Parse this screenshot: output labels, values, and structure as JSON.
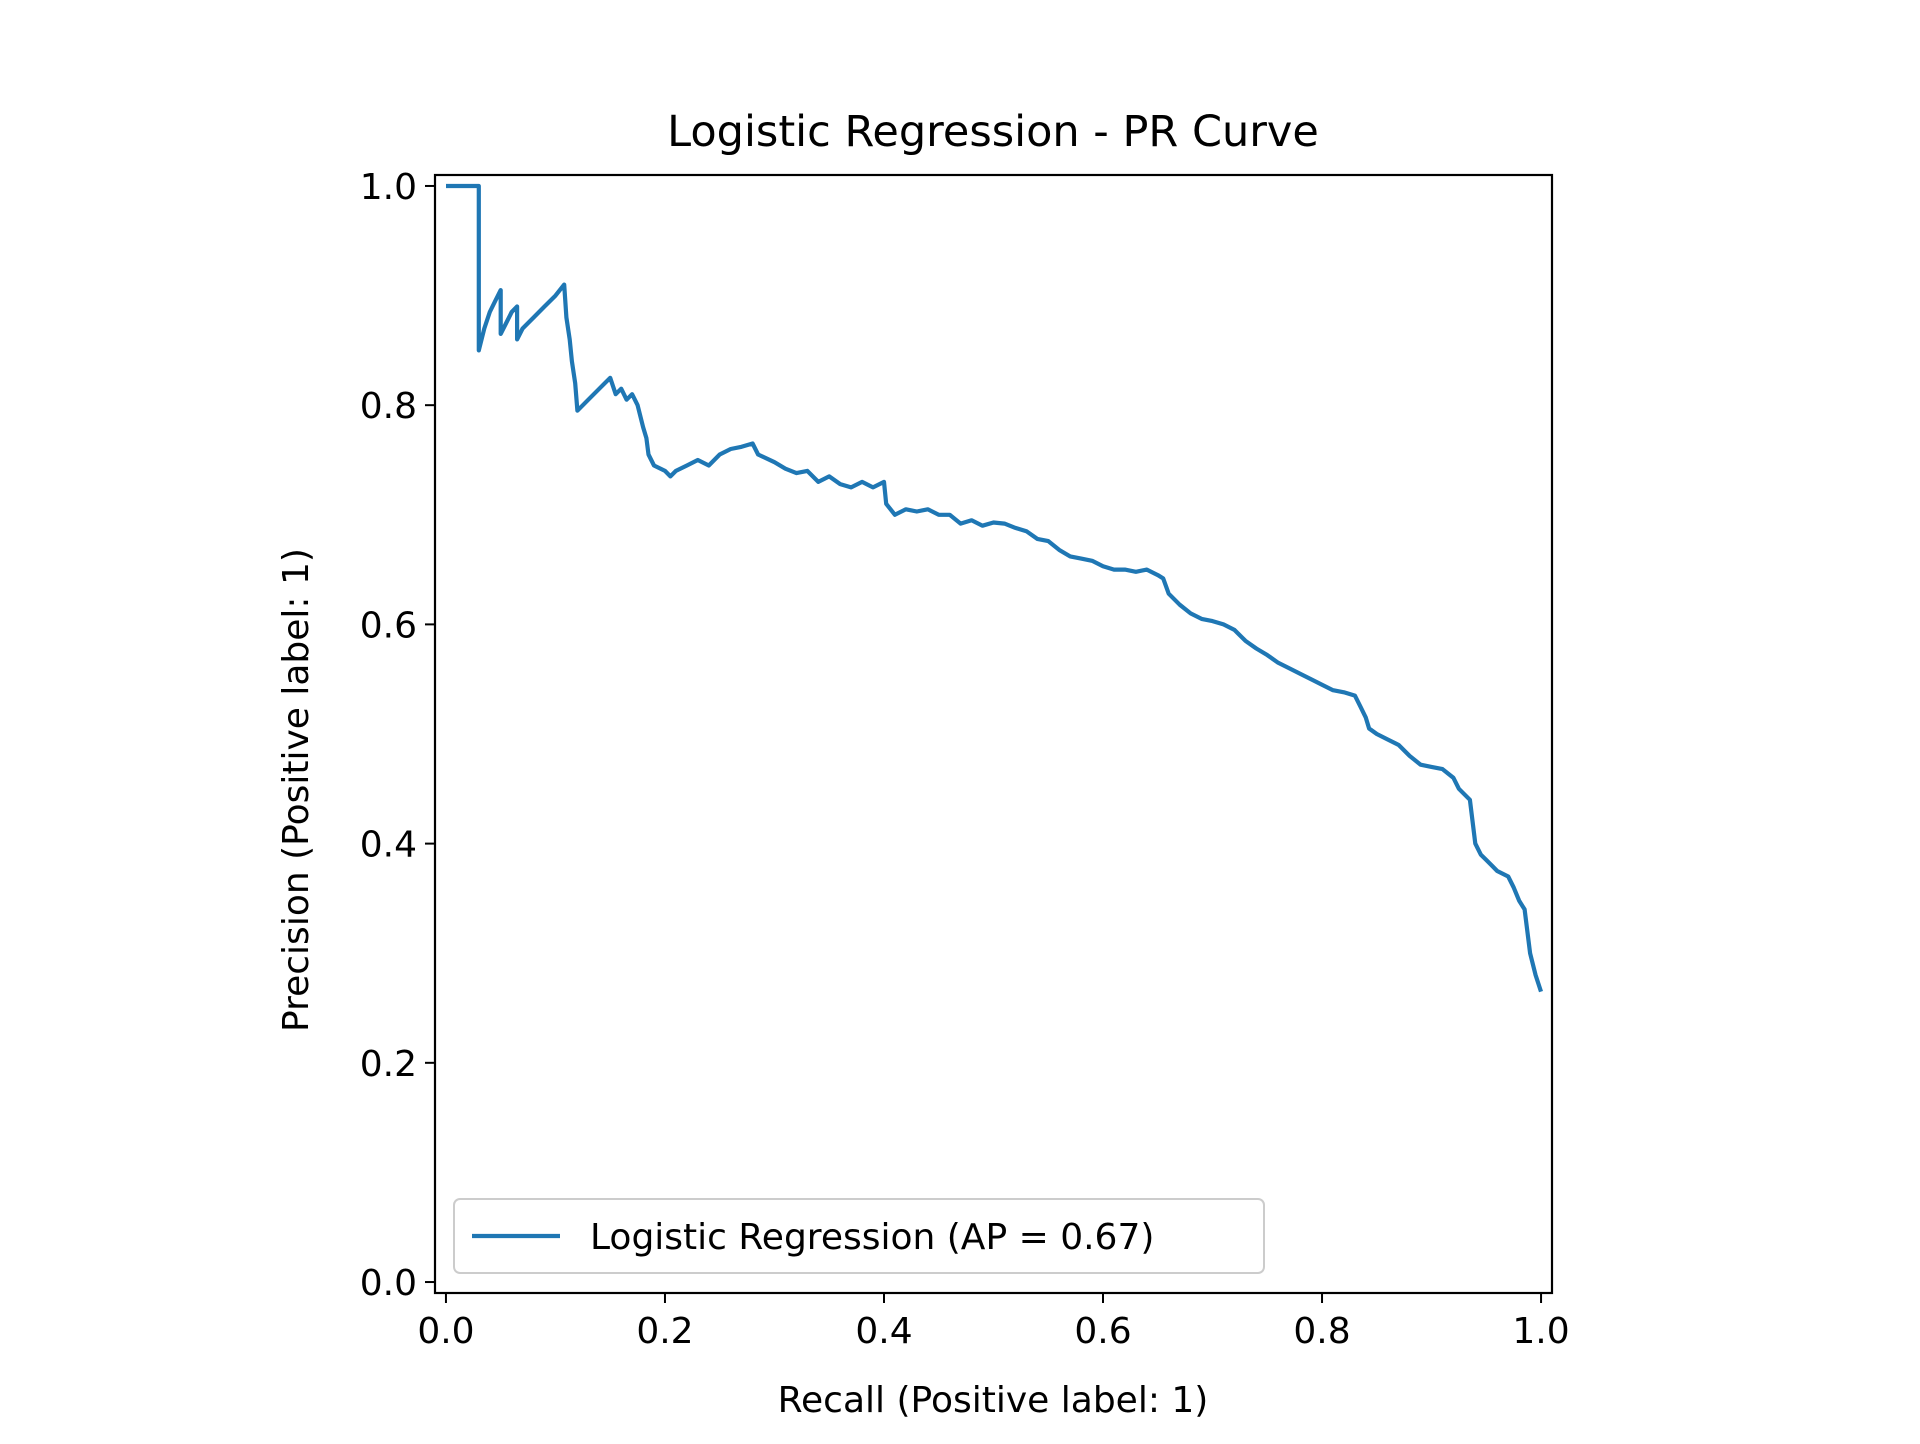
{
  "chart_data": {
    "type": "line",
    "title": "Logistic Regression - PR Curve",
    "xlabel": "Recall (Positive label: 1)",
    "ylabel": "Precision (Positive label: 1)",
    "xlim": [
      -0.01,
      1.01
    ],
    "ylim": [
      -0.01,
      1.01
    ],
    "x_ticks": [
      0.0,
      0.2,
      0.4,
      0.6,
      0.8,
      1.0
    ],
    "x_tick_labels": [
      "0.0",
      "0.2",
      "0.4",
      "0.6",
      "0.8",
      "1.0"
    ],
    "y_ticks": [
      0.0,
      0.2,
      0.4,
      0.6,
      0.8,
      1.0
    ],
    "y_tick_labels": [
      "0.0",
      "0.2",
      "0.4",
      "0.6",
      "0.8",
      "1.0"
    ],
    "grid": false,
    "legend_position": "lower-left",
    "series": [
      {
        "name": "Logistic Regression (AP = 0.67)",
        "color": "#1f77b4",
        "points": [
          [
            0.0,
            1.0
          ],
          [
            0.03,
            1.0
          ],
          [
            0.03,
            0.85
          ],
          [
            0.035,
            0.87
          ],
          [
            0.04,
            0.885
          ],
          [
            0.045,
            0.895
          ],
          [
            0.05,
            0.905
          ],
          [
            0.05,
            0.865
          ],
          [
            0.055,
            0.875
          ],
          [
            0.06,
            0.885
          ],
          [
            0.065,
            0.89
          ],
          [
            0.065,
            0.86
          ],
          [
            0.07,
            0.87
          ],
          [
            0.08,
            0.88
          ],
          [
            0.09,
            0.89
          ],
          [
            0.1,
            0.9
          ],
          [
            0.108,
            0.91
          ],
          [
            0.11,
            0.88
          ],
          [
            0.113,
            0.86
          ],
          [
            0.115,
            0.84
          ],
          [
            0.118,
            0.82
          ],
          [
            0.12,
            0.795
          ],
          [
            0.13,
            0.805
          ],
          [
            0.14,
            0.815
          ],
          [
            0.15,
            0.825
          ],
          [
            0.155,
            0.81
          ],
          [
            0.16,
            0.815
          ],
          [
            0.165,
            0.805
          ],
          [
            0.17,
            0.81
          ],
          [
            0.175,
            0.8
          ],
          [
            0.18,
            0.78
          ],
          [
            0.183,
            0.77
          ],
          [
            0.185,
            0.755
          ],
          [
            0.19,
            0.745
          ],
          [
            0.2,
            0.74
          ],
          [
            0.205,
            0.735
          ],
          [
            0.21,
            0.74
          ],
          [
            0.22,
            0.745
          ],
          [
            0.23,
            0.75
          ],
          [
            0.24,
            0.745
          ],
          [
            0.25,
            0.755
          ],
          [
            0.26,
            0.76
          ],
          [
            0.27,
            0.762
          ],
          [
            0.28,
            0.765
          ],
          [
            0.285,
            0.755
          ],
          [
            0.3,
            0.748
          ],
          [
            0.31,
            0.742
          ],
          [
            0.32,
            0.738
          ],
          [
            0.33,
            0.74
          ],
          [
            0.34,
            0.73
          ],
          [
            0.35,
            0.735
          ],
          [
            0.36,
            0.728
          ],
          [
            0.37,
            0.725
          ],
          [
            0.38,
            0.73
          ],
          [
            0.39,
            0.725
          ],
          [
            0.4,
            0.73
          ],
          [
            0.402,
            0.71
          ],
          [
            0.41,
            0.7
          ],
          [
            0.42,
            0.705
          ],
          [
            0.43,
            0.703
          ],
          [
            0.44,
            0.705
          ],
          [
            0.45,
            0.7
          ],
          [
            0.46,
            0.7
          ],
          [
            0.47,
            0.692
          ],
          [
            0.48,
            0.695
          ],
          [
            0.49,
            0.69
          ],
          [
            0.5,
            0.693
          ],
          [
            0.51,
            0.692
          ],
          [
            0.52,
            0.688
          ],
          [
            0.53,
            0.685
          ],
          [
            0.54,
            0.678
          ],
          [
            0.55,
            0.676
          ],
          [
            0.56,
            0.668
          ],
          [
            0.57,
            0.662
          ],
          [
            0.58,
            0.66
          ],
          [
            0.59,
            0.658
          ],
          [
            0.6,
            0.653
          ],
          [
            0.61,
            0.65
          ],
          [
            0.62,
            0.65
          ],
          [
            0.63,
            0.648
          ],
          [
            0.64,
            0.65
          ],
          [
            0.65,
            0.645
          ],
          [
            0.655,
            0.642
          ],
          [
            0.66,
            0.628
          ],
          [
            0.67,
            0.618
          ],
          [
            0.68,
            0.61
          ],
          [
            0.69,
            0.605
          ],
          [
            0.7,
            0.603
          ],
          [
            0.71,
            0.6
          ],
          [
            0.72,
            0.595
          ],
          [
            0.73,
            0.585
          ],
          [
            0.74,
            0.578
          ],
          [
            0.75,
            0.572
          ],
          [
            0.76,
            0.565
          ],
          [
            0.77,
            0.56
          ],
          [
            0.78,
            0.555
          ],
          [
            0.79,
            0.55
          ],
          [
            0.8,
            0.545
          ],
          [
            0.81,
            0.54
          ],
          [
            0.82,
            0.538
          ],
          [
            0.83,
            0.535
          ],
          [
            0.835,
            0.525
          ],
          [
            0.84,
            0.515
          ],
          [
            0.843,
            0.505
          ],
          [
            0.85,
            0.5
          ],
          [
            0.86,
            0.495
          ],
          [
            0.87,
            0.49
          ],
          [
            0.88,
            0.48
          ],
          [
            0.89,
            0.472
          ],
          [
            0.9,
            0.47
          ],
          [
            0.91,
            0.468
          ],
          [
            0.92,
            0.46
          ],
          [
            0.925,
            0.45
          ],
          [
            0.93,
            0.445
          ],
          [
            0.935,
            0.44
          ],
          [
            0.94,
            0.4
          ],
          [
            0.945,
            0.39
          ],
          [
            0.95,
            0.385
          ],
          [
            0.955,
            0.38
          ],
          [
            0.96,
            0.375
          ],
          [
            0.97,
            0.37
          ],
          [
            0.975,
            0.36
          ],
          [
            0.98,
            0.348
          ],
          [
            0.985,
            0.34
          ],
          [
            0.99,
            0.3
          ],
          [
            0.995,
            0.28
          ],
          [
            1.0,
            0.265
          ]
        ]
      }
    ]
  }
}
